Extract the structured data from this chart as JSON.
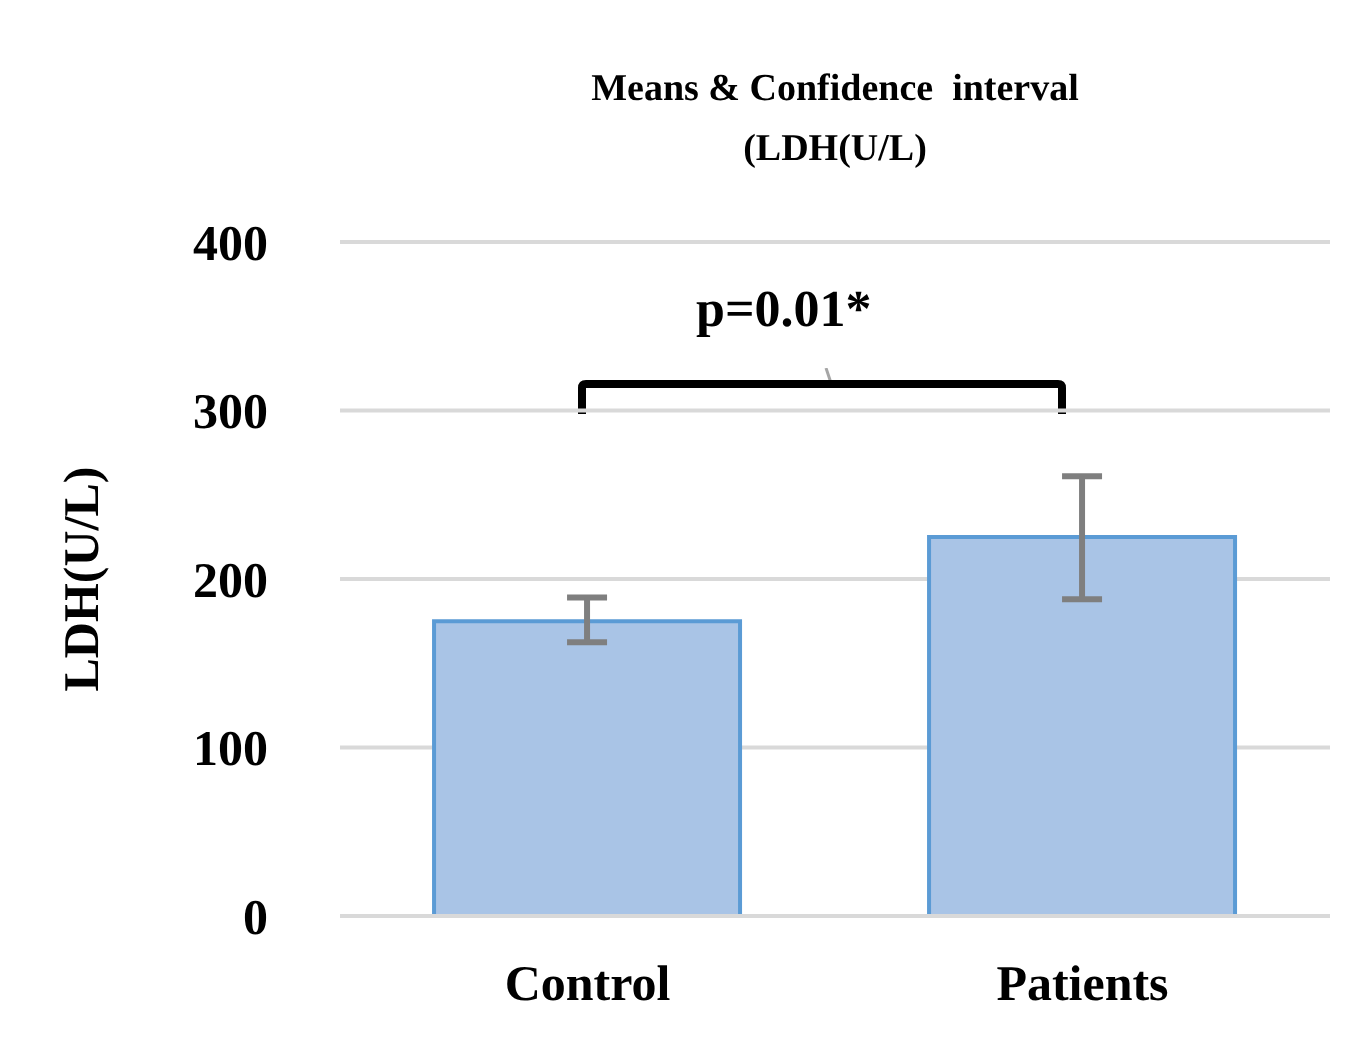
{
  "chart_data": {
    "type": "bar",
    "title": "Means & Confidence  interval\n(LDH(U/L)",
    "ylabel": "LDH(U/L)",
    "categories": [
      "Control",
      "Patients"
    ],
    "series": [
      {
        "color": "#a9c4e6",
        "values": [
          175,
          225
        ],
        "errors": [
          [
            162.5,
            189
          ],
          [
            188,
            261
          ]
        ]
      }
    ],
    "ylim": [
      0,
      400
    ],
    "yticks": [
      0,
      100,
      200,
      300,
      400
    ],
    "grid": "y",
    "legend": false,
    "annotations": [
      "p=0.01*"
    ]
  }
}
